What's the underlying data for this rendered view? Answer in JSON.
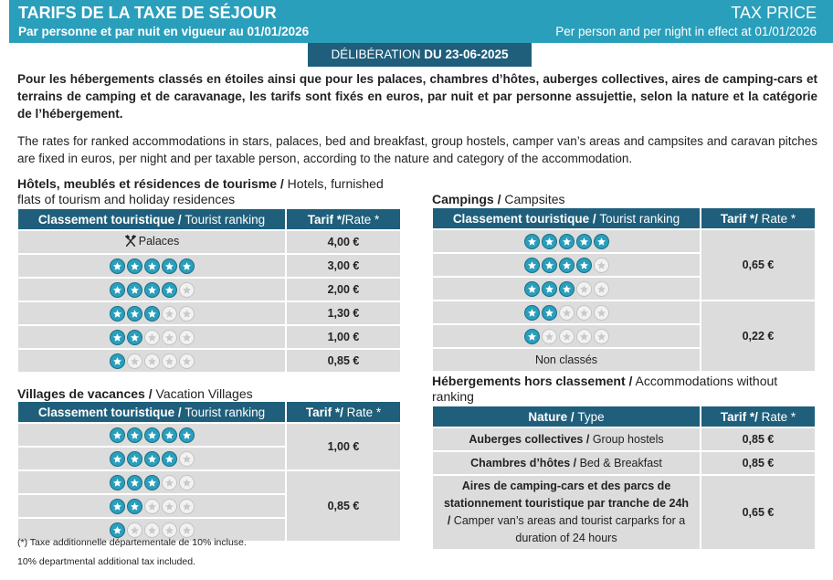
{
  "header": {
    "title_fr": "TARIFS DE LA TAXE DE SÉJOUR",
    "subtitle_fr": "Par personne et par nuit en vigueur au 01/01/2026",
    "title_en": "TAX PRICE",
    "subtitle_en": "Per person and per night in effect at 01/01/2026",
    "deliberation_label": "DÉLIBÉRATION",
    "deliberation_date": "DU 23-06-2025"
  },
  "intro": {
    "fr": "Pour les hébergements classés en étoiles ainsi que pour les palaces, chambres d’hôtes, auberges collectives, aires de camping-cars et terrains de camping et de caravanage, les tarifs sont fixés en euros, par nuit et par personne assujettie, selon la nature et la catégorie de l’hébergement.",
    "en": "The rates for ranked accommodations in stars, palaces, bed and breakfast, group hostels, camper van’s areas and campsites and caravan pitches are fixed in euros, per night and per taxable person, according to the nature and category of the accommodation."
  },
  "colors": {
    "banner": "#2a9fbc",
    "header_dark": "#1f5f7c",
    "cell_bg": "#dcdcdc",
    "star_on": "#2a9fbc",
    "star_off": "#f2f2f2"
  },
  "headers": {
    "ranking_fr": "Classement touristique /",
    "ranking_en": "Tourist ranking",
    "rate_fr": "Tarif */",
    "rate_en": "Rate *",
    "nature_fr": "Nature /",
    "nature_en": "Type"
  },
  "hotels": {
    "title_fr": "Hôtels, meublés et résidences de tourisme /",
    "title_en": "Hotels, furnished flats of tourism and holiday residences",
    "palace_icon": "forks-crossed-icon",
    "rows": [
      {
        "label": "Palaces",
        "stars": 0,
        "rate": "4,00 €"
      },
      {
        "stars": 5,
        "rate": "3,00 €"
      },
      {
        "stars": 4,
        "rate": "2,00 €"
      },
      {
        "stars": 3,
        "rate": "1,30 €"
      },
      {
        "stars": 2,
        "rate": "1,00 €"
      },
      {
        "stars": 1,
        "rate": "0,85 €"
      }
    ]
  },
  "villages": {
    "title_fr": "Villages de vacances /",
    "title_en": "Vacation Villages",
    "group1": {
      "stars": [
        5,
        4
      ],
      "rate": "1,00 €"
    },
    "group2": {
      "stars": [
        3,
        2,
        1
      ],
      "rate": "0,85 €"
    }
  },
  "campings": {
    "title_fr": "Campings /",
    "title_en": "Campsites",
    "group1": {
      "stars": [
        5,
        4,
        3
      ],
      "rate": "0,65 €"
    },
    "group2": {
      "stars": [
        2,
        1
      ],
      "unclassified": "Non classés",
      "rate": "0,22 €"
    }
  },
  "unranked": {
    "title_fr": "Hébergements hors classement /",
    "title_en": "Accommodations without ranking",
    "rows": [
      {
        "type_fr": "Auberges collectives /",
        "type_en": "Group hostels",
        "rate": "0,85 €"
      },
      {
        "type_fr": "Chambres d’hôtes /",
        "type_en": "Bed & Breakfast",
        "rate": "0,85 €"
      },
      {
        "type_fr": "Aires de camping-cars et des parcs de stationnement touristique par tranche de 24h /",
        "type_en": "Camper van’s areas and tourist carparks for a duration of 24 hours",
        "rate": "0,65 €"
      }
    ]
  },
  "footnotes": {
    "fr": "(*) Taxe additionnelle départementale de 10% incluse.",
    "en": "10% departmental additional tax included."
  }
}
